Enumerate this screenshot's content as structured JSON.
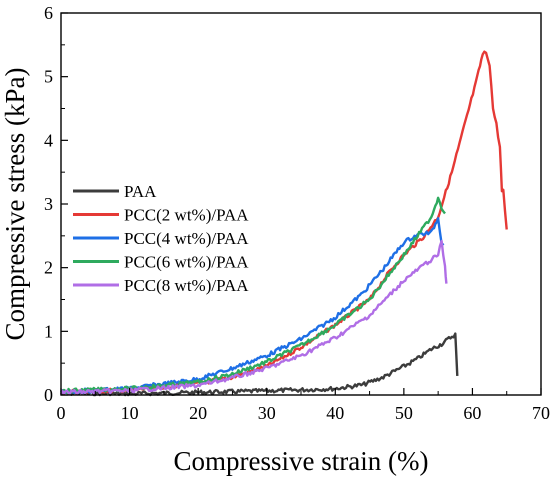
{
  "chart_data": {
    "type": "line",
    "title": "",
    "xlabel": "Compressive strain (%)",
    "ylabel": "Compressive stress (kPa)",
    "xlim": [
      0,
      70
    ],
    "ylim": [
      0,
      6
    ],
    "xticks": [
      "0",
      "10",
      "20",
      "30",
      "40",
      "50",
      "60",
      "70"
    ],
    "yticks": [
      "0",
      "1",
      "2",
      "3",
      "4",
      "5",
      "6"
    ],
    "grid": false,
    "legend_position": "center-left",
    "series": [
      {
        "name": "PAA",
        "color": "#3c3c3c",
        "x": [
          0,
          10,
          20,
          28,
          35,
          40,
          44,
          47,
          50,
          52,
          54,
          55.5,
          57,
          57.5,
          57.8
        ],
        "y": [
          0.03,
          0.02,
          0.04,
          0.06,
          0.08,
          0.1,
          0.16,
          0.28,
          0.45,
          0.57,
          0.72,
          0.8,
          0.92,
          0.95,
          0.3
        ]
      },
      {
        "name": "PCC(2 wt%)/PAA",
        "color": "#e53935",
        "x": [
          0,
          10,
          20,
          25,
          30,
          35,
          40,
          45,
          48,
          50,
          53,
          55,
          57,
          59,
          60.5,
          61.5,
          62,
          62.5,
          63,
          63.5,
          64,
          64.3,
          64.5,
          65
        ],
        "y": [
          0.05,
          0.08,
          0.18,
          0.28,
          0.45,
          0.75,
          1.1,
          1.5,
          1.95,
          2.2,
          2.5,
          2.8,
          3.5,
          4.3,
          4.9,
          5.35,
          5.38,
          5.2,
          4.5,
          4.25,
          3.9,
          3.2,
          3.2,
          2.6
        ]
      },
      {
        "name": "PCC(4 wt%)/PAA",
        "color": "#1e6fe6",
        "x": [
          0,
          10,
          20,
          25,
          30,
          35,
          40,
          44,
          47,
          50,
          52,
          54,
          55,
          55.5,
          55.8
        ],
        "y": [
          0.05,
          0.1,
          0.25,
          0.42,
          0.62,
          0.88,
          1.22,
          1.6,
          1.98,
          2.4,
          2.52,
          2.55,
          2.78,
          2.4,
          2.38
        ]
      },
      {
        "name": "PCC(6 wt%)/PAA",
        "color": "#2eaa5e",
        "x": [
          0,
          10,
          20,
          25,
          30,
          35,
          40,
          45,
          48,
          50,
          52,
          54,
          55,
          55.5,
          56
        ],
        "y": [
          0.06,
          0.1,
          0.2,
          0.33,
          0.52,
          0.78,
          1.1,
          1.5,
          1.92,
          2.2,
          2.5,
          2.8,
          3.1,
          2.95,
          2.85
        ]
      },
      {
        "name": "PCC(8 wt%)/PAA",
        "color": "#b06ee6",
        "x": [
          0,
          10,
          20,
          25,
          30,
          35,
          40,
          45,
          50,
          53,
          55,
          55.5,
          56,
          56.2
        ],
        "y": [
          0.04,
          0.07,
          0.15,
          0.27,
          0.42,
          0.62,
          0.9,
          1.25,
          1.8,
          2.05,
          2.2,
          2.42,
          2.0,
          1.75
        ]
      }
    ]
  }
}
